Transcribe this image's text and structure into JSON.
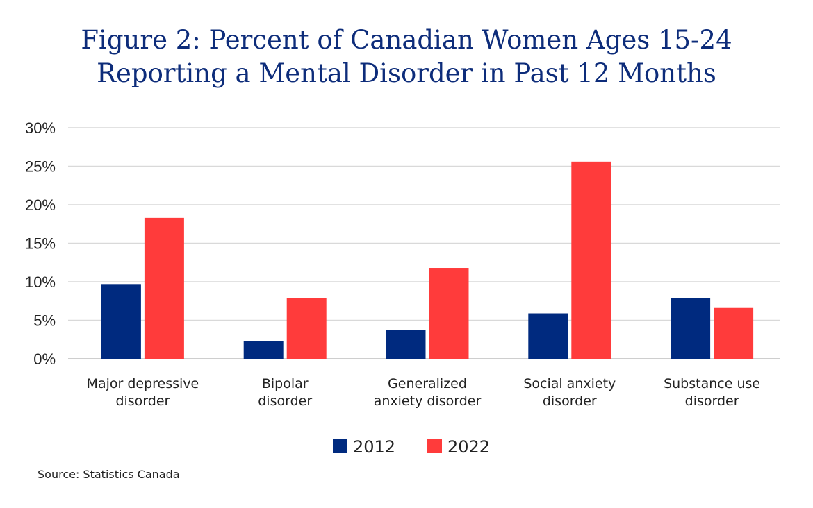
{
  "chart_data": {
    "type": "bar",
    "title_line1": "Figure 2: Percent of Canadian Women Ages 15-24",
    "title_line2": "Reporting a Mental Disorder in Past 12 Months",
    "categories": [
      [
        "Major depressive",
        "disorder"
      ],
      [
        "Bipolar",
        "disorder"
      ],
      [
        "Generalized",
        "anxiety disorder"
      ],
      [
        "Social anxiety",
        "disorder"
      ],
      [
        "Substance use",
        "disorder"
      ]
    ],
    "series": [
      {
        "name": "2012",
        "color": "#002a7f",
        "values": [
          9.7,
          2.3,
          3.7,
          5.9,
          7.9
        ]
      },
      {
        "name": "2022",
        "color": "#ff3b3b",
        "values": [
          18.3,
          7.9,
          11.8,
          25.6,
          6.6
        ]
      }
    ],
    "ylim": [
      0,
      30
    ],
    "yticks": [
      {
        "value": 30,
        "label": "30%"
      },
      {
        "value": 25,
        "label": "25%"
      },
      {
        "value": 20,
        "label": "20%"
      },
      {
        "value": 15,
        "label": "15%"
      },
      {
        "value": 10,
        "label": "10%"
      },
      {
        "value": 5,
        "label": "5%"
      },
      {
        "value": 0,
        "label": "0%"
      }
    ],
    "grid": true,
    "legend_position": "bottom-center",
    "source": "Source: Statistics Canada"
  }
}
